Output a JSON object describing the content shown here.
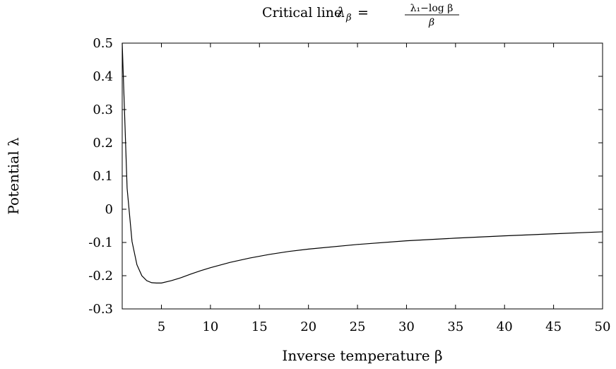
{
  "chart_data": {
    "type": "line",
    "title": {
      "prefix": "Critical line ",
      "lhs_symbol": "λ",
      "lhs_subscript": "β",
      "equals": "=",
      "numerator": "λ₁−log β",
      "denominator": "β"
    },
    "xlabel": "Inverse temperature β",
    "ylabel": "Potential λ",
    "xlim": [
      1,
      50
    ],
    "ylim": [
      -0.3,
      0.5
    ],
    "xticks": [
      5,
      10,
      15,
      20,
      25,
      30,
      35,
      40,
      45,
      50
    ],
    "xtick_labels": [
      "5",
      "10",
      "15",
      "20",
      "25",
      "30",
      "35",
      "40",
      "45",
      "50"
    ],
    "yticks": [
      0.5,
      0.4,
      0.3,
      0.2,
      0.1,
      0,
      -0.1,
      -0.2,
      -0.3
    ],
    "ytick_labels": [
      "0.5",
      "0.4",
      "0.3",
      "0.2",
      "0.1",
      "0",
      "-0.1",
      "-0.2",
      "-0.3"
    ],
    "grid": false,
    "legend": "none",
    "line_color": "#000000",
    "series": [
      {
        "x": [
          1,
          1.5,
          2,
          2.5,
          3,
          3.5,
          4,
          4.5,
          5,
          6,
          7,
          8,
          9,
          10,
          12,
          14,
          16,
          18,
          20,
          25,
          30,
          35,
          40,
          45,
          50
        ],
        "y": [
          0.5,
          0.063,
          -0.097,
          -0.167,
          -0.2,
          -0.215,
          -0.221,
          -0.222,
          -0.222,
          -0.215,
          -0.206,
          -0.195,
          -0.185,
          -0.176,
          -0.16,
          -0.147,
          -0.136,
          -0.127,
          -0.12,
          -0.106,
          -0.095,
          -0.087,
          -0.08,
          -0.074,
          -0.068
        ]
      }
    ]
  }
}
